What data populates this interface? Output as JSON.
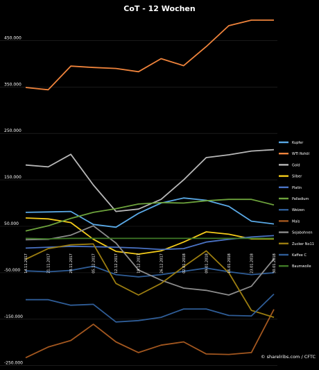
{
  "chart_data": {
    "type": "line",
    "title": "CoT - 12 Wochen",
    "source_label": "© sharelribs.com / CFTC",
    "x": [
      "14.11.2017",
      "21.11.2017",
      "28.11.2017",
      "05.12.2017",
      "12.12.2017",
      "19.12.2017",
      "26.12.2017",
      "02.01.2018",
      "09.01.2018",
      "16.01.2018",
      "23.01.2018",
      "30.01.2018"
    ],
    "y_ticks": [
      -250000,
      -150000,
      -50000,
      50000,
      150000,
      250000,
      350000,
      450000
    ],
    "y_tick_labels": [
      "-250.000",
      "-150.000",
      "-50.000",
      "50.000",
      "150.000",
      "250.000",
      "350.000",
      "450.000"
    ],
    "ylim": [
      -255000,
      500000
    ],
    "grid": true,
    "legend_position": "right",
    "series": [
      {
        "name": "Kupfer",
        "color": "#5aa9e6",
        "values": [
          80000,
          81000,
          82000,
          54000,
          48000,
          78000,
          100000,
          111000,
          106000,
          93000,
          61000,
          55000
        ]
      },
      {
        "name": "WTI Rohöl",
        "color": "#f0843c",
        "values": [
          349000,
          344000,
          395000,
          392000,
          390000,
          383000,
          411000,
          396000,
          437000,
          482000,
          494000,
          494000
        ]
      },
      {
        "name": "Gold",
        "color": "#b8b8b8",
        "values": [
          182000,
          178000,
          205000,
          139000,
          82000,
          87000,
          108000,
          150000,
          198000,
          204000,
          212000,
          215000
        ]
      },
      {
        "name": "Silber",
        "color": "#f5cc1a",
        "values": [
          68000,
          66000,
          58000,
          22000,
          -4000,
          -10000,
          -3000,
          16000,
          38000,
          33000,
          23000,
          23000
        ]
      },
      {
        "name": "Platin",
        "color": "#4a72c4",
        "values": [
          3000,
          5000,
          7000,
          6000,
          5000,
          3000,
          0,
          2000,
          16000,
          22000,
          27000,
          30000
        ]
      },
      {
        "name": "Palladium",
        "color": "#6da33c",
        "values": [
          40000,
          51000,
          67000,
          80000,
          88000,
          98000,
          101000,
          100000,
          105000,
          108000,
          108000,
          96000
        ]
      },
      {
        "name": "Weizen",
        "color": "#2f5d97",
        "values": [
          -46000,
          -48000,
          -45000,
          -36000,
          -54000,
          -59000,
          -54000,
          -47000,
          -40000,
          -48000,
          -54000,
          -50000
        ]
      },
      {
        "name": "Mais",
        "color": "#a3571f",
        "values": [
          -233000,
          -210000,
          -196000,
          -161000,
          -199000,
          -222000,
          -206000,
          -199000,
          -225000,
          -226000,
          -222000,
          -129000
        ]
      },
      {
        "name": "Sojabohnen",
        "color": "#8c8c8c",
        "values": [
          21000,
          22000,
          31000,
          51000,
          14000,
          -44000,
          -66000,
          -83000,
          -88000,
          -98000,
          -79000,
          -20000
        ]
      },
      {
        "name": "Zucker No11",
        "color": "#9b7d10",
        "values": [
          -21000,
          2000,
          10000,
          12000,
          -73000,
          -98000,
          -73000,
          -37000,
          -3000,
          -50000,
          -131000,
          -146000
        ]
      },
      {
        "name": "Kaffee C",
        "color": "#2f5d97",
        "values": [
          -108000,
          -108000,
          -120000,
          -118000,
          -156000,
          -153000,
          -146000,
          -128000,
          -128000,
          -142000,
          -143000,
          -96000
        ]
      },
      {
        "name": "Baumwolle",
        "color": "#3f7a26",
        "values": [
          24000,
          23000,
          24000,
          24000,
          24000,
          24000,
          24000,
          24000,
          24000,
          24000,
          24000,
          24000
        ]
      }
    ]
  }
}
